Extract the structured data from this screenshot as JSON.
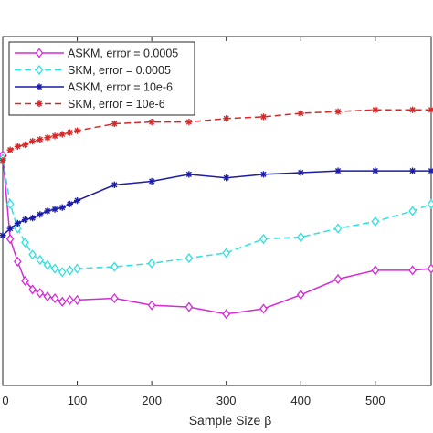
{
  "chart_data": {
    "type": "line",
    "title": "",
    "xlabel": "Sample Size β",
    "ylabel": "",
    "xlim": [
      0,
      575
    ],
    "ylim": [
      0,
      1
    ],
    "x_ticks": [
      0,
      100,
      200,
      300,
      400,
      500
    ],
    "x_tick_labels": [
      "0",
      "100",
      "200",
      "300",
      "400",
      "500"
    ],
    "y_ticks": [],
    "y_tick_labels": [],
    "grid": false,
    "legend_position": "top-left",
    "series": [
      {
        "name": "ASKM, error = 0.0005",
        "color": "#d62ad6",
        "line_style": "solid",
        "marker": "diamond",
        "points": [
          [
            0,
            0.66
          ],
          [
            10,
            0.42
          ],
          [
            20,
            0.355
          ],
          [
            30,
            0.3
          ],
          [
            40,
            0.275
          ],
          [
            50,
            0.265
          ],
          [
            60,
            0.255
          ],
          [
            70,
            0.25
          ],
          [
            80,
            0.24
          ],
          [
            90,
            0.245
          ],
          [
            100,
            0.245
          ],
          [
            150,
            0.25
          ],
          [
            200,
            0.23
          ],
          [
            250,
            0.225
          ],
          [
            300,
            0.205
          ],
          [
            350,
            0.22
          ],
          [
            400,
            0.26
          ],
          [
            450,
            0.305
          ],
          [
            500,
            0.33
          ],
          [
            550,
            0.33
          ],
          [
            575,
            0.335
          ]
        ]
      },
      {
        "name": "SKM, error = 0.0005",
        "color": "#2ee0e0",
        "line_style": "dashed",
        "marker": "diamond",
        "points": [
          [
            0,
            0.65
          ],
          [
            10,
            0.52
          ],
          [
            20,
            0.45
          ],
          [
            30,
            0.41
          ],
          [
            40,
            0.375
          ],
          [
            50,
            0.36
          ],
          [
            60,
            0.345
          ],
          [
            70,
            0.335
          ],
          [
            80,
            0.325
          ],
          [
            90,
            0.33
          ],
          [
            100,
            0.335
          ],
          [
            150,
            0.34
          ],
          [
            200,
            0.35
          ],
          [
            250,
            0.365
          ],
          [
            300,
            0.38
          ],
          [
            350,
            0.42
          ],
          [
            400,
            0.425
          ],
          [
            450,
            0.45
          ],
          [
            500,
            0.47
          ],
          [
            550,
            0.5
          ],
          [
            575,
            0.52
          ]
        ]
      },
      {
        "name": "ASKM, error = 10e-6",
        "color": "#1c1ca8",
        "line_style": "solid",
        "marker": "asterisk",
        "points": [
          [
            0,
            0.43
          ],
          [
            10,
            0.45
          ],
          [
            20,
            0.465
          ],
          [
            30,
            0.475
          ],
          [
            40,
            0.48
          ],
          [
            50,
            0.49
          ],
          [
            60,
            0.5
          ],
          [
            70,
            0.505
          ],
          [
            80,
            0.51
          ],
          [
            90,
            0.52
          ],
          [
            100,
            0.53
          ],
          [
            150,
            0.575
          ],
          [
            200,
            0.585
          ],
          [
            250,
            0.605
          ],
          [
            300,
            0.595
          ],
          [
            350,
            0.605
          ],
          [
            400,
            0.61
          ],
          [
            450,
            0.615
          ],
          [
            500,
            0.615
          ],
          [
            550,
            0.615
          ],
          [
            575,
            0.615
          ]
        ]
      },
      {
        "name": "SKM, error = 10e-6",
        "color": "#d62828",
        "line_style": "dashed",
        "marker": "asterisk",
        "points": [
          [
            0,
            0.645
          ],
          [
            10,
            0.675
          ],
          [
            20,
            0.685
          ],
          [
            30,
            0.69
          ],
          [
            40,
            0.7
          ],
          [
            50,
            0.705
          ],
          [
            60,
            0.71
          ],
          [
            70,
            0.715
          ],
          [
            80,
            0.72
          ],
          [
            90,
            0.725
          ],
          [
            100,
            0.73
          ],
          [
            150,
            0.75
          ],
          [
            200,
            0.755
          ],
          [
            250,
            0.755
          ],
          [
            300,
            0.765
          ],
          [
            350,
            0.77
          ],
          [
            400,
            0.78
          ],
          [
            450,
            0.785
          ],
          [
            500,
            0.79
          ],
          [
            550,
            0.79
          ],
          [
            575,
            0.79
          ]
        ]
      }
    ]
  }
}
